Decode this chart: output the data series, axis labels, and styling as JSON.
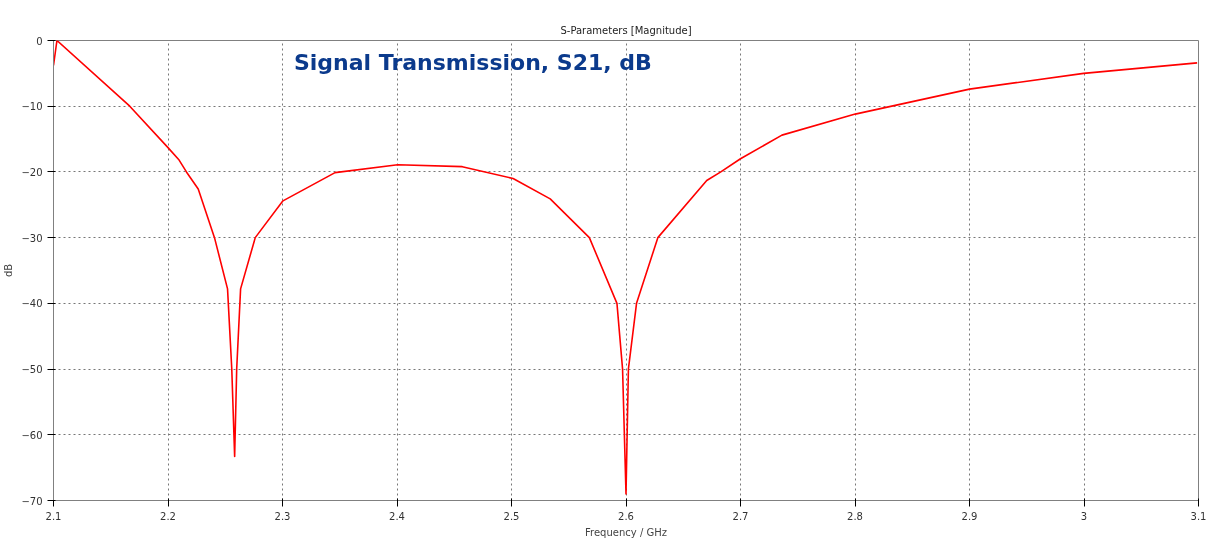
{
  "chart_data": {
    "type": "line",
    "title": "S-Parameters [Magnitude]",
    "xlabel": "Frequency / GHz",
    "ylabel": "dB",
    "annotations": [
      "Signal Transmission, S21, dB"
    ],
    "xlim": [
      2.1,
      3.1
    ],
    "ylim": [
      -70,
      0
    ],
    "xticks": [
      2.1,
      2.2,
      2.3,
      2.4,
      2.5,
      2.6,
      2.7,
      2.8,
      2.9,
      3,
      3.1
    ],
    "yticks": [
      -70,
      -60,
      -50,
      -40,
      -30,
      -20,
      -10,
      0
    ],
    "grid": true,
    "line_style": "solid",
    "marker": "none",
    "series": [
      {
        "color": "#ff0000",
        "x": [
          2.1,
          2.103,
          2.1666,
          2.2,
          2.2093,
          2.2161,
          2.2264,
          2.2406,
          2.252,
          2.2557,
          2.2582,
          2.26,
          2.2634,
          2.2762,
          2.3004,
          2.3459,
          2.4006,
          2.457,
          2.5014,
          2.5338,
          2.568,
          2.5921,
          2.597,
          2.6,
          2.6021,
          2.6092,
          2.6278,
          2.6705,
          2.6828,
          2.7,
          2.7362,
          2.8002,
          2.9,
          2.9997,
          3.0988
        ],
        "values": [
          -3.8,
          0,
          -10,
          -16.3,
          -18.1,
          -20,
          -22.6,
          -30,
          -37.8,
          -50,
          -63.3,
          -50,
          -37.8,
          -30,
          -24.4,
          -20.1,
          -18.9,
          -19.2,
          -21,
          -24.1,
          -30,
          -40,
          -50,
          -69,
          -50,
          -40,
          -30,
          -21.3,
          -20,
          -18,
          -14.4,
          -11.2,
          -7.4,
          -5,
          -3.4
        ]
      }
    ]
  }
}
